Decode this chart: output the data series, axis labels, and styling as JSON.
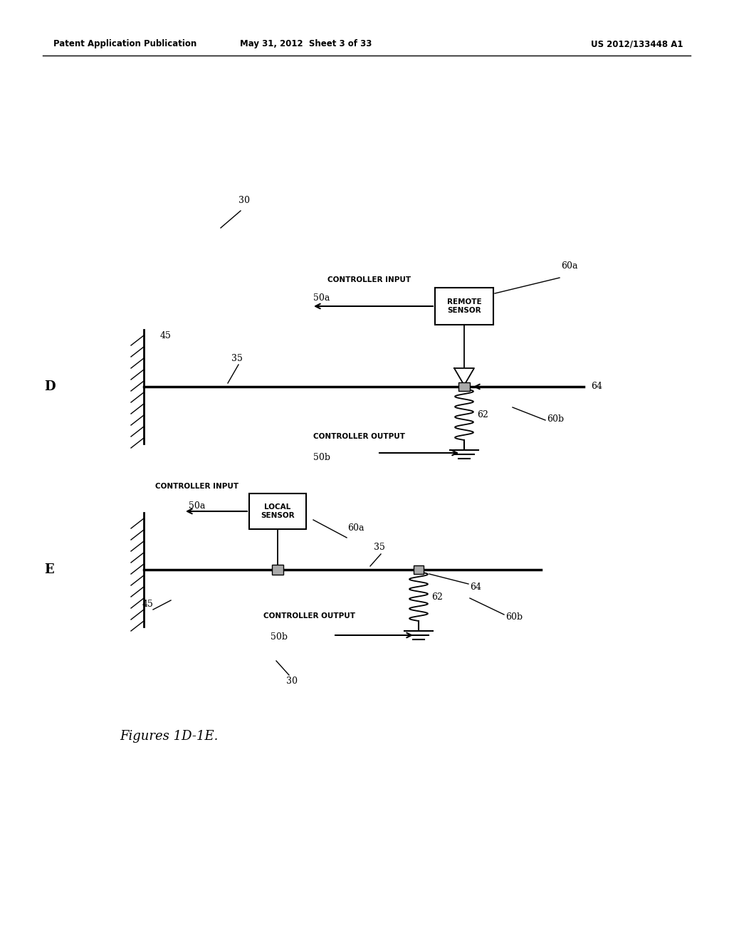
{
  "bg_color": "#ffffff",
  "header_left": "Patent Application Publication",
  "header_mid": "May 31, 2012  Sheet 3 of 33",
  "header_right": "US 2012/133448 A1",
  "fig_label": "Figures 1D-1E."
}
